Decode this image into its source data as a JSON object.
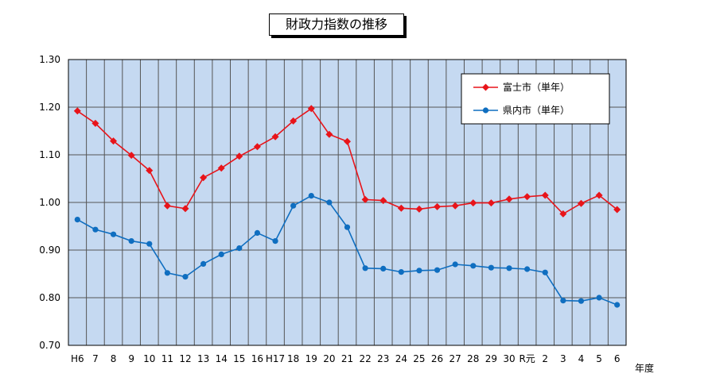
{
  "chart_data": {
    "type": "line",
    "title": "財政力指数の推移",
    "xlabel": "年度",
    "ylabel": "",
    "ylim": [
      0.7,
      1.3
    ],
    "yticks": [
      "1.30",
      "1.20",
      "1.10",
      "1.00",
      "0.90",
      "0.80",
      "0.70"
    ],
    "ytick_values": [
      1.3,
      1.2,
      1.1,
      1.0,
      0.9,
      0.8,
      0.7
    ],
    "categories": [
      "H6",
      "7",
      "8",
      "9",
      "10",
      "11",
      "12",
      "13",
      "14",
      "15",
      "16",
      "H17",
      "18",
      "19",
      "20",
      "21",
      "22",
      "23",
      "24",
      "25",
      "26",
      "27",
      "28",
      "29",
      "30",
      "R元",
      "2",
      "3",
      "4",
      "5",
      "6"
    ],
    "grid": true,
    "legend_position": "top-right",
    "plot_background": "#c5d9f1",
    "series": [
      {
        "name": "富士市（単年）",
        "color": "#e8141a",
        "marker": "diamond",
        "values": [
          1.192,
          1.166,
          1.129,
          1.099,
          1.067,
          0.993,
          0.987,
          1.052,
          1.072,
          1.097,
          1.117,
          1.138,
          1.171,
          1.197,
          1.143,
          1.128,
          1.006,
          1.004,
          0.988,
          0.986,
          0.991,
          0.993,
          0.999,
          0.999,
          1.007,
          1.012,
          1.015,
          0.976,
          0.998,
          1.015,
          0.985
        ]
      },
      {
        "name": "県内市（単年）",
        "color": "#0f6ec0",
        "marker": "circle",
        "values": [
          0.964,
          0.943,
          0.933,
          0.919,
          0.913,
          0.852,
          0.844,
          0.871,
          0.891,
          0.904,
          0.936,
          0.919,
          0.993,
          1.014,
          1.0,
          0.948,
          0.862,
          0.861,
          0.854,
          0.857,
          0.858,
          0.87,
          0.867,
          0.863,
          0.862,
          0.86,
          0.853,
          0.794,
          0.793,
          0.8,
          0.785
        ]
      }
    ]
  }
}
